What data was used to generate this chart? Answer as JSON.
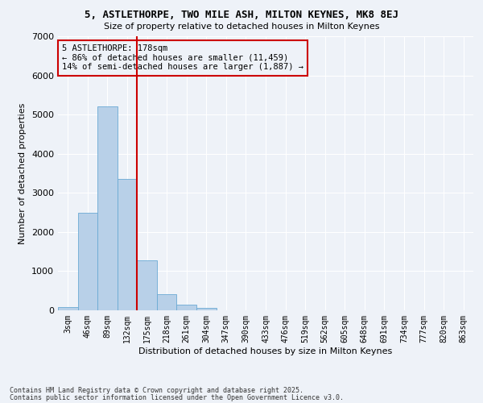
{
  "title1": "5, ASTLETHORPE, TWO MILE ASH, MILTON KEYNES, MK8 8EJ",
  "title2": "Size of property relative to detached houses in Milton Keynes",
  "xlabel": "Distribution of detached houses by size in Milton Keynes",
  "ylabel": "Number of detached properties",
  "categories": [
    "3sqm",
    "46sqm",
    "89sqm",
    "132sqm",
    "175sqm",
    "218sqm",
    "261sqm",
    "304sqm",
    "347sqm",
    "390sqm",
    "433sqm",
    "476sqm",
    "519sqm",
    "562sqm",
    "605sqm",
    "648sqm",
    "691sqm",
    "734sqm",
    "777sqm",
    "820sqm",
    "863sqm"
  ],
  "values": [
    80,
    2500,
    5200,
    3350,
    1280,
    420,
    150,
    60,
    0,
    0,
    0,
    0,
    0,
    0,
    0,
    0,
    0,
    0,
    0,
    0,
    0
  ],
  "bar_color": "#b8d0e8",
  "bar_edge_color": "#6aaad4",
  "vline_color": "#cc0000",
  "vline_pos": 3.5,
  "annotation_text": "5 ASTLETHORPE: 178sqm\n← 86% of detached houses are smaller (11,459)\n14% of semi-detached houses are larger (1,887) →",
  "annotation_box_color": "#cc0000",
  "annotation_text_color": "#000000",
  "ylim": [
    0,
    7000
  ],
  "yticks": [
    0,
    1000,
    2000,
    3000,
    4000,
    5000,
    6000,
    7000
  ],
  "background_color": "#eef2f8",
  "grid_color": "#ffffff",
  "footer1": "Contains HM Land Registry data © Crown copyright and database right 2025.",
  "footer2": "Contains public sector information licensed under the Open Government Licence v3.0."
}
